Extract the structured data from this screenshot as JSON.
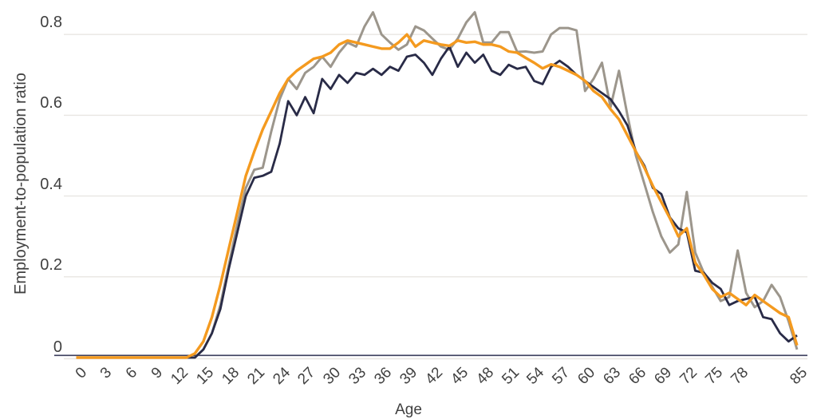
{
  "style": {
    "background": "#ffffff",
    "gridline_color": "#e8e6e2",
    "axis_line_color": "#3b3e5c",
    "text_color": "#404040",
    "series_colors": {
      "navy": "#292b47",
      "orange": "#f49a1f",
      "gray": "#9c968c"
    }
  },
  "chart_data": {
    "type": "line",
    "title": "",
    "xlabel": "Age",
    "ylabel": "Employment-to-population ratio",
    "xlim": [
      0,
      85
    ],
    "ylim": [
      0,
      0.86
    ],
    "grid": "horizontal",
    "legend": "none",
    "x_tick_values": [
      0,
      3,
      6,
      9,
      12,
      15,
      18,
      21,
      24,
      27,
      30,
      33,
      36,
      39,
      42,
      45,
      48,
      51,
      54,
      57,
      60,
      63,
      66,
      69,
      72,
      75,
      78,
      85
    ],
    "x_tick_labels": [
      "0",
      "3",
      "6",
      "9",
      "12",
      "15",
      "18",
      "21",
      "24",
      "27",
      "30",
      "33",
      "36",
      "39",
      "42",
      "45",
      "48",
      "51",
      "54",
      "57",
      "60",
      "63",
      "66",
      "69",
      "72",
      "75",
      "78",
      "85"
    ],
    "y_tick_values": [
      0,
      0.2,
      0.4,
      0.6,
      0.8
    ],
    "y_tick_labels": [
      "0",
      "0.2",
      "0.4",
      "0.6",
      "0.8"
    ],
    "x": [
      0,
      1,
      2,
      3,
      4,
      5,
      6,
      7,
      8,
      9,
      10,
      11,
      12,
      13,
      14,
      15,
      16,
      17,
      18,
      19,
      20,
      21,
      22,
      23,
      24,
      25,
      26,
      27,
      28,
      29,
      30,
      31,
      32,
      33,
      34,
      35,
      36,
      37,
      38,
      39,
      40,
      41,
      42,
      43,
      44,
      45,
      46,
      47,
      48,
      49,
      50,
      51,
      52,
      53,
      54,
      55,
      56,
      57,
      58,
      59,
      60,
      61,
      62,
      63,
      64,
      65,
      66,
      67,
      68,
      69,
      70,
      71,
      72,
      73,
      74,
      75,
      76,
      77,
      78,
      79,
      80,
      81,
      82,
      83,
      84,
      85
    ],
    "series": [
      {
        "name": "gray",
        "color": "#9c968c",
        "values": [
          0,
          0,
          0,
          0,
          0,
          0,
          0,
          0,
          0,
          0,
          0,
          0,
          0,
          0,
          0,
          0.02,
          0.06,
          0.13,
          0.23,
          0.33,
          0.42,
          0.465,
          0.47,
          0.56,
          0.64,
          0.69,
          0.665,
          0.705,
          0.72,
          0.745,
          0.72,
          0.755,
          0.78,
          0.77,
          0.82,
          0.855,
          0.8,
          0.78,
          0.762,
          0.775,
          0.82,
          0.81,
          0.79,
          0.77,
          0.762,
          0.79,
          0.83,
          0.855,
          0.78,
          0.78,
          0.806,
          0.806,
          0.757,
          0.758,
          0.755,
          0.758,
          0.8,
          0.816,
          0.816,
          0.81,
          0.66,
          0.69,
          0.73,
          0.62,
          0.71,
          0.6,
          0.5,
          0.43,
          0.36,
          0.3,
          0.26,
          0.28,
          0.41,
          0.26,
          0.21,
          0.175,
          0.14,
          0.15,
          0.265,
          0.16,
          0.125,
          0.14,
          0.18,
          0.15,
          0.09,
          0.02
        ]
      },
      {
        "name": "navy",
        "color": "#292b47",
        "values": [
          0,
          0,
          0,
          0,
          0,
          0,
          0,
          0,
          0,
          0,
          0,
          0,
          0,
          0,
          0,
          0.02,
          0.06,
          0.12,
          0.22,
          0.31,
          0.4,
          0.445,
          0.45,
          0.46,
          0.53,
          0.635,
          0.6,
          0.645,
          0.605,
          0.69,
          0.665,
          0.7,
          0.68,
          0.705,
          0.7,
          0.715,
          0.7,
          0.72,
          0.71,
          0.745,
          0.75,
          0.73,
          0.7,
          0.74,
          0.77,
          0.72,
          0.755,
          0.73,
          0.75,
          0.71,
          0.7,
          0.725,
          0.715,
          0.72,
          0.685,
          0.677,
          0.72,
          0.735,
          0.72,
          0.7,
          0.685,
          0.67,
          0.655,
          0.64,
          0.61,
          0.575,
          0.51,
          0.475,
          0.42,
          0.405,
          0.347,
          0.32,
          0.31,
          0.215,
          0.21,
          0.185,
          0.17,
          0.13,
          0.14,
          0.145,
          0.15,
          0.1,
          0.095,
          0.06,
          0.04,
          0.055
        ]
      },
      {
        "name": "orange",
        "color": "#f49a1f",
        "values": [
          0,
          0,
          0,
          0,
          0,
          0,
          0,
          0,
          0,
          0,
          0,
          0,
          0,
          0,
          0.01,
          0.04,
          0.1,
          0.18,
          0.27,
          0.36,
          0.45,
          0.51,
          0.565,
          0.61,
          0.655,
          0.69,
          0.71,
          0.725,
          0.74,
          0.745,
          0.755,
          0.775,
          0.785,
          0.78,
          0.775,
          0.77,
          0.765,
          0.765,
          0.78,
          0.8,
          0.77,
          0.785,
          0.78,
          0.775,
          0.772,
          0.785,
          0.78,
          0.782,
          0.775,
          0.775,
          0.77,
          0.758,
          0.755,
          0.742,
          0.73,
          0.716,
          0.726,
          0.72,
          0.71,
          0.7,
          0.685,
          0.66,
          0.645,
          0.615,
          0.59,
          0.55,
          0.51,
          0.47,
          0.425,
          0.385,
          0.345,
          0.3,
          0.32,
          0.235,
          0.205,
          0.17,
          0.15,
          0.16,
          0.145,
          0.13,
          0.155,
          0.14,
          0.125,
          0.11,
          0.1,
          0.03
        ]
      }
    ]
  }
}
